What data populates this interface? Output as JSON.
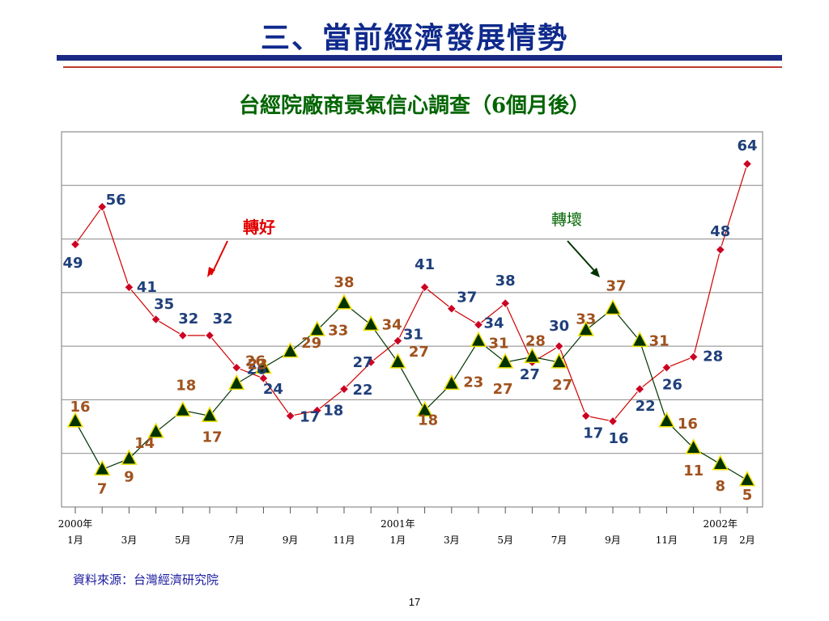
{
  "slide": {
    "title": "三、當前經濟發展情勢",
    "source": "資料來源：台灣經濟研究院",
    "page_number": "17"
  },
  "colors": {
    "good_line": "#d00000",
    "good_marker": "#cc0022",
    "good_label": "#1f3f7a",
    "bad_line": "#003300",
    "bad_marker": "#003300",
    "bad_marker_outline": "#f0e000",
    "bad_label": "#a0521e",
    "good_annotation": "#e00000",
    "bad_annotation": "#006400"
  },
  "chart_data": {
    "type": "line",
    "title": "台經院廠商景氣信心調查（6個月後）",
    "xlabel": "",
    "ylabel": "",
    "ylim": [
      0,
      70
    ],
    "grid": true,
    "x_tick_count": 26,
    "x_labels": [
      {
        "index": 0,
        "year": "2000年",
        "month": "1月"
      },
      {
        "index": 2,
        "year": "",
        "month": "3月"
      },
      {
        "index": 4,
        "year": "",
        "month": "5月"
      },
      {
        "index": 6,
        "year": "",
        "month": "7月"
      },
      {
        "index": 8,
        "year": "",
        "month": "9月"
      },
      {
        "index": 10,
        "year": "",
        "month": "11月"
      },
      {
        "index": 12,
        "year": "2001年",
        "month": "1月"
      },
      {
        "index": 14,
        "year": "",
        "month": "3月"
      },
      {
        "index": 16,
        "year": "",
        "month": "5月"
      },
      {
        "index": 18,
        "year": "",
        "month": "7月"
      },
      {
        "index": 20,
        "year": "",
        "month": "9月"
      },
      {
        "index": 22,
        "year": "",
        "month": "11月"
      },
      {
        "index": 24,
        "year": "2002年",
        "month": "1月"
      },
      {
        "index": 25,
        "year": "",
        "month": "2月"
      }
    ],
    "series": [
      {
        "key": "good",
        "name": "轉好",
        "values": [
          49,
          56,
          41,
          35,
          32,
          32,
          26,
          24,
          17,
          18,
          22,
          27,
          31,
          41,
          37,
          34,
          38,
          27,
          30,
          17,
          16,
          22,
          26,
          28,
          48,
          64
        ]
      },
      {
        "key": "bad",
        "name": "轉壞",
        "values": [
          16,
          7,
          9,
          14,
          18,
          17,
          23,
          26,
          29,
          33,
          38,
          34,
          27,
          18,
          23,
          31,
          27,
          28,
          27,
          33,
          37,
          31,
          16,
          11,
          8,
          5
        ]
      }
    ]
  }
}
